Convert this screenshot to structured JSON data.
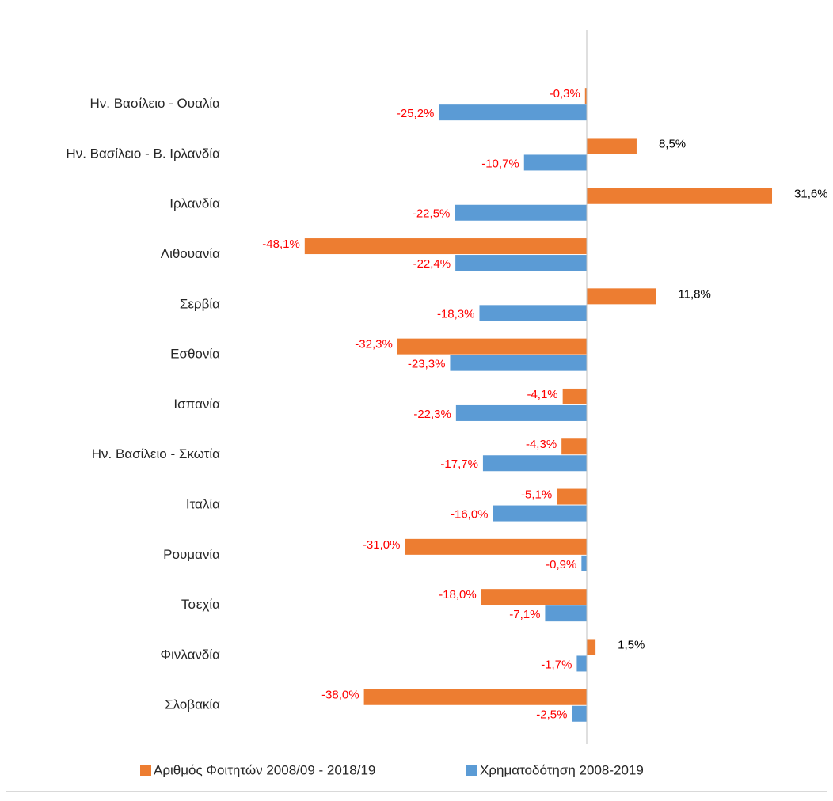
{
  "chart_data": {
    "type": "hbar",
    "categories": [
      "Ην. Βασίλειο - Ουαλία",
      "Ην. Βασίλειο - Β. Ιρλανδία",
      "Ιρλανδία",
      "Λιθουανία",
      "Σερβία",
      "Εσθονία",
      "Ισπανία",
      "Ην. Βασίλειο - Σκωτία",
      "Ιταλία",
      "Ρουμανία",
      "Τσεχία",
      "Φινλανδία",
      "Σλοβακία"
    ],
    "series": [
      {
        "name": "Αριθμός Φοιτητών 2008/09 - 2018/19",
        "color": "#ed7d31",
        "values": [
          -0.3,
          8.5,
          31.6,
          -48.1,
          11.8,
          -32.3,
          -4.1,
          -4.3,
          -5.1,
          -31.0,
          -18.0,
          1.5,
          -38.0
        ],
        "value_labels": [
          "-0,3%",
          "8,5%",
          "31,6%",
          "-48,1%",
          "11,8%",
          "-32,3%",
          "-4,1%",
          "-4,3%",
          "-5,1%",
          "-31,0%",
          "-18,0%",
          "1,5%",
          "-38,0%"
        ]
      },
      {
        "name": "Χρηματοδότηση 2008-2019",
        "color": "#5b9bd5",
        "values": [
          -25.2,
          -10.7,
          -22.5,
          -22.4,
          -18.3,
          -23.3,
          -22.3,
          -17.7,
          -16.0,
          -0.9,
          -7.1,
          -1.7,
          -2.5
        ],
        "value_labels": [
          "-25,2%",
          "-10,7%",
          "-22,5%",
          "-22,4%",
          "-18,3%",
          "-23,3%",
          "-22,3%",
          "-17,7%",
          "-16,0%",
          "-0,9%",
          "-7,1%",
          "-1,7%",
          "-2,5%"
        ]
      }
    ],
    "xlim": [
      -55.5,
      39.7
    ],
    "negative_label_color": "#ff0000",
    "positive_label_color": "#000000",
    "legend": "bottom"
  }
}
